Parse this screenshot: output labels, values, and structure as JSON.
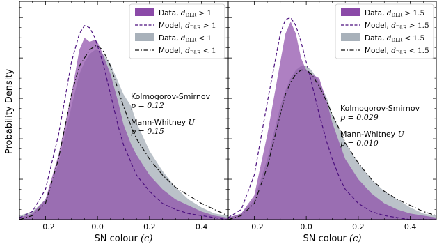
{
  "chart_data": [
    {
      "type": "area",
      "ylabel": "Probability Density",
      "xlabel": "SN colour",
      "xlabel_math": "(c)",
      "xlim": [
        -0.3,
        0.5
      ],
      "xticks": [
        -0.2,
        0.0,
        0.2,
        0.4
      ],
      "xtick_labels": [
        "−0.2",
        "0.0",
        "0.2",
        "0.4"
      ],
      "ylim": [
        0,
        1.08
      ],
      "y_tick_labels_shown": false,
      "legend_position": "top-right",
      "series": [
        {
          "name": "Data, d_DLR > 1",
          "legend_text": "Data,",
          "legend_math": "d",
          "legend_sub": "DLR",
          "legend_cond": " > 1",
          "kind": "filled",
          "color": "#8b4aa8",
          "x": [
            -0.3,
            -0.25,
            -0.2,
            -0.15,
            -0.1,
            -0.07,
            -0.05,
            -0.03,
            -0.01,
            0.0,
            0.02,
            0.05,
            0.08,
            0.1,
            0.13,
            0.15,
            0.2,
            0.25,
            0.3,
            0.35,
            0.4,
            0.45,
            0.5
          ],
          "y": [
            0.01,
            0.03,
            0.1,
            0.32,
            0.62,
            0.84,
            0.9,
            0.88,
            0.89,
            0.88,
            0.82,
            0.72,
            0.58,
            0.47,
            0.37,
            0.32,
            0.22,
            0.15,
            0.1,
            0.07,
            0.04,
            0.02,
            0.01
          ]
        },
        {
          "name": "Model, d_DLR > 1",
          "legend_text": "Model,",
          "legend_math": "d",
          "legend_sub": "DLR",
          "legend_cond": " > 1",
          "kind": "dashed",
          "color": "#4b0f7e",
          "x": [
            -0.3,
            -0.25,
            -0.2,
            -0.15,
            -0.1,
            -0.07,
            -0.05,
            -0.03,
            -0.01,
            0.0,
            0.02,
            0.05,
            0.08,
            0.1,
            0.13,
            0.15,
            0.2,
            0.25,
            0.3,
            0.35,
            0.4,
            0.45,
            0.5
          ],
          "y": [
            0.01,
            0.04,
            0.15,
            0.42,
            0.78,
            0.92,
            0.96,
            0.95,
            0.9,
            0.86,
            0.78,
            0.62,
            0.46,
            0.37,
            0.28,
            0.22,
            0.14,
            0.08,
            0.05,
            0.03,
            0.02,
            0.01,
            0.0
          ]
        },
        {
          "name": "Data, d_DLR < 1",
          "legend_text": "Data,",
          "legend_math": "d",
          "legend_sub": "DLR",
          "legend_cond": " < 1",
          "kind": "filled",
          "color": "#9ea8b2",
          "x": [
            -0.3,
            -0.25,
            -0.2,
            -0.15,
            -0.1,
            -0.07,
            -0.05,
            -0.03,
            -0.01,
            0.0,
            0.02,
            0.05,
            0.08,
            0.1,
            0.13,
            0.15,
            0.2,
            0.25,
            0.3,
            0.35,
            0.4,
            0.45,
            0.5
          ],
          "y": [
            0.02,
            0.04,
            0.1,
            0.28,
            0.56,
            0.72,
            0.78,
            0.82,
            0.84,
            0.84,
            0.82,
            0.77,
            0.68,
            0.62,
            0.56,
            0.48,
            0.34,
            0.24,
            0.16,
            0.1,
            0.06,
            0.03,
            0.02
          ]
        },
        {
          "name": "Model, d_DLR < 1",
          "legend_text": "Model,",
          "legend_math": "d",
          "legend_sub": "DLR",
          "legend_cond": " < 1",
          "kind": "dashdot",
          "color": "#111111",
          "x": [
            -0.3,
            -0.25,
            -0.2,
            -0.15,
            -0.1,
            -0.07,
            -0.05,
            -0.03,
            -0.01,
            0.0,
            0.02,
            0.05,
            0.08,
            0.1,
            0.13,
            0.15,
            0.2,
            0.25,
            0.3,
            0.35,
            0.4,
            0.45,
            0.5
          ],
          "y": [
            0.0,
            0.02,
            0.08,
            0.3,
            0.62,
            0.76,
            0.8,
            0.84,
            0.86,
            0.86,
            0.84,
            0.76,
            0.64,
            0.56,
            0.46,
            0.4,
            0.3,
            0.22,
            0.16,
            0.12,
            0.08,
            0.05,
            0.02
          ]
        }
      ],
      "annotations": [
        {
          "text": "Kolmogorov-Smirnov",
          "style": "text"
        },
        {
          "text": "p = 0.12",
          "style": "math"
        },
        {
          "text": "Mann-Whitney",
          "style": "text",
          "suffix_math": "U"
        },
        {
          "text": "p = 0.15",
          "style": "math"
        }
      ]
    },
    {
      "type": "area",
      "ylabel": "",
      "xlabel": "SN colour",
      "xlabel_math": "(c)",
      "xlim": [
        -0.3,
        0.5
      ],
      "xticks": [
        -0.2,
        0.0,
        0.2,
        0.4
      ],
      "xtick_labels": [
        "−0.2",
        "0.0",
        "0.2",
        "0.4"
      ],
      "ylim": [
        0,
        1.08
      ],
      "y_tick_labels_shown": false,
      "legend_position": "top-right",
      "series": [
        {
          "name": "Data, d_DLR > 1.5",
          "legend_text": "Data,",
          "legend_math": "d",
          "legend_sub": "DLR",
          "legend_cond": " > 1.5",
          "kind": "filled",
          "color": "#8b4aa8",
          "x": [
            -0.3,
            -0.25,
            -0.2,
            -0.15,
            -0.1,
            -0.08,
            -0.06,
            -0.04,
            -0.02,
            0.0,
            0.02,
            0.05,
            0.08,
            0.1,
            0.13,
            0.15,
            0.2,
            0.25,
            0.3,
            0.35,
            0.4,
            0.45,
            0.5
          ],
          "y": [
            0.01,
            0.03,
            0.12,
            0.42,
            0.78,
            0.92,
            0.98,
            0.92,
            0.8,
            0.74,
            0.72,
            0.7,
            0.58,
            0.48,
            0.37,
            0.3,
            0.2,
            0.13,
            0.08,
            0.05,
            0.03,
            0.02,
            0.01
          ]
        },
        {
          "name": "Model, d_DLR > 1.5",
          "legend_text": "Model,",
          "legend_math": "d",
          "legend_sub": "DLR",
          "legend_cond": " > 1.5",
          "kind": "dashed",
          "color": "#4b0f7e",
          "x": [
            -0.3,
            -0.25,
            -0.2,
            -0.15,
            -0.1,
            -0.08,
            -0.06,
            -0.04,
            -0.02,
            0.0,
            0.02,
            0.05,
            0.08,
            0.1,
            0.13,
            0.15,
            0.2,
            0.25,
            0.3,
            0.35,
            0.4,
            0.45,
            0.5
          ],
          "y": [
            0.01,
            0.05,
            0.22,
            0.58,
            0.92,
            0.99,
            1.0,
            0.96,
            0.88,
            0.78,
            0.68,
            0.52,
            0.38,
            0.3,
            0.2,
            0.15,
            0.08,
            0.04,
            0.02,
            0.01,
            0.0,
            0.0,
            0.0
          ]
        },
        {
          "name": "Data, d_DLR < 1.5",
          "legend_text": "Data,",
          "legend_math": "d",
          "legend_sub": "DLR",
          "legend_cond": " < 1.5",
          "kind": "filled",
          "color": "#9ea8b2",
          "x": [
            -0.3,
            -0.25,
            -0.2,
            -0.15,
            -0.1,
            -0.08,
            -0.06,
            -0.04,
            -0.02,
            0.0,
            0.02,
            0.05,
            0.08,
            0.1,
            0.13,
            0.15,
            0.2,
            0.25,
            0.3,
            0.35,
            0.4,
            0.45,
            0.5
          ],
          "y": [
            0.01,
            0.03,
            0.1,
            0.3,
            0.56,
            0.64,
            0.7,
            0.74,
            0.76,
            0.76,
            0.74,
            0.68,
            0.6,
            0.52,
            0.44,
            0.38,
            0.28,
            0.2,
            0.14,
            0.1,
            0.06,
            0.03,
            0.02
          ]
        },
        {
          "name": "Model, d_DLR < 1.5",
          "legend_text": "Model,",
          "legend_math": "d",
          "legend_sub": "DLR",
          "legend_cond": " < 1.5",
          "kind": "dashdot",
          "color": "#111111",
          "x": [
            -0.3,
            -0.25,
            -0.2,
            -0.15,
            -0.1,
            -0.08,
            -0.06,
            -0.04,
            -0.02,
            0.0,
            0.02,
            0.05,
            0.08,
            0.1,
            0.13,
            0.15,
            0.2,
            0.25,
            0.3,
            0.35,
            0.4,
            0.45,
            0.5
          ],
          "y": [
            0.0,
            0.02,
            0.08,
            0.26,
            0.52,
            0.62,
            0.68,
            0.72,
            0.74,
            0.74,
            0.72,
            0.66,
            0.58,
            0.52,
            0.44,
            0.38,
            0.28,
            0.2,
            0.14,
            0.1,
            0.07,
            0.04,
            0.02
          ]
        }
      ],
      "annotations": [
        {
          "text": "Kolmogorov-Smirnov",
          "style": "text"
        },
        {
          "text": "p = 0.029",
          "style": "math"
        },
        {
          "text": "Mann-Whitney",
          "style": "text",
          "suffix_math": "U"
        },
        {
          "text": "p = 0.010",
          "style": "math"
        }
      ]
    }
  ]
}
